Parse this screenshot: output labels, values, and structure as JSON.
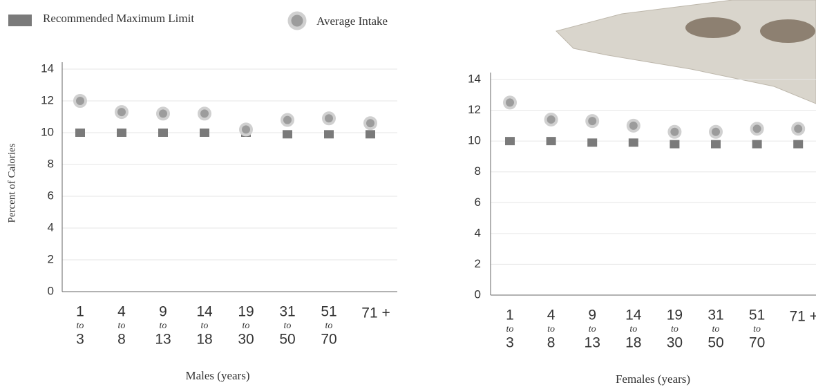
{
  "legend_title": null,
  "chart_data": [
    {
      "type": "scatter",
      "x_label": "Males (years)",
      "y_label": "Percent of Calories",
      "categories": [
        [
          "1",
          "to",
          "3"
        ],
        [
          "4",
          "to",
          "8"
        ],
        [
          "9",
          "to",
          "13"
        ],
        [
          "14",
          "to",
          "18"
        ],
        [
          "19",
          "to",
          "30"
        ],
        [
          "31",
          "to",
          "50"
        ],
        [
          "51",
          "to",
          "70"
        ],
        [
          "71 +"
        ]
      ],
      "series": [
        {
          "name": "Recommended Maximum Limit",
          "color": "#7a7a7a",
          "marker": "square",
          "values": [
            10,
            10,
            10,
            10,
            10,
            9.9,
            9.9,
            9.9
          ]
        },
        {
          "name": "Average Intake",
          "color": "#9c9c9c",
          "marker": "circle",
          "values": [
            12.0,
            11.3,
            11.2,
            11.2,
            10.2,
            10.8,
            10.9,
            10.6
          ]
        }
      ],
      "ylim": [
        0,
        14
      ],
      "yticks": [
        0,
        2,
        4,
        6,
        8,
        10,
        12,
        14
      ],
      "grid": true
    },
    {
      "type": "scatter",
      "x_label": "Females (years)",
      "categories": [
        [
          "1",
          "to",
          "3"
        ],
        [
          "4",
          "to",
          "8"
        ],
        [
          "9",
          "to",
          "13"
        ],
        [
          "14",
          "to",
          "18"
        ],
        [
          "19",
          "to",
          "30"
        ],
        [
          "31",
          "to",
          "50"
        ],
        [
          "51",
          "to",
          "70"
        ],
        [
          "71 +"
        ]
      ],
      "series": [
        {
          "values": [
            10,
            10,
            9.9,
            9.9,
            9.8,
            9.8,
            9.8,
            9.8
          ]
        },
        {
          "values": [
            12.5,
            11.4,
            11.3,
            11.0,
            10.6,
            10.6,
            10.8,
            10.8
          ]
        }
      ],
      "ylim": [
        0,
        14
      ],
      "yticks": [
        0,
        2,
        4,
        6,
        8,
        10,
        12,
        14
      ],
      "grid": true
    }
  ]
}
